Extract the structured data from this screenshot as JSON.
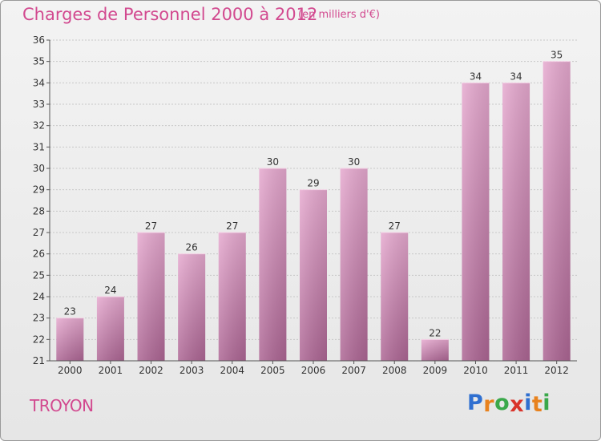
{
  "title": "Charges de Personnel 2000 à 2012",
  "subtitle": "(en milliers d'€)",
  "commune": "TROYON",
  "logo": {
    "text": "Proxiti",
    "letters": [
      {
        "ch": "P",
        "color": "#2f6fd0"
      },
      {
        "ch": "r",
        "color": "#e8821e"
      },
      {
        "ch": "o",
        "color": "#3aa84a"
      },
      {
        "ch": "x",
        "color": "#d9342b"
      },
      {
        "ch": "i",
        "color": "#2f6fd0"
      },
      {
        "ch": "t",
        "color": "#e8821e"
      },
      {
        "ch": "i",
        "color": "#3aa84a"
      }
    ]
  },
  "colors": {
    "bar": "#d98bbd",
    "bar_dark": "#b06a99",
    "title": "#d2498f",
    "axis": "#555555"
  },
  "chart_data": {
    "type": "bar",
    "title": "Charges de Personnel 2000 à 2012",
    "subtitle": "(en milliers d'€)",
    "categories": [
      "2000",
      "2001",
      "2002",
      "2003",
      "2004",
      "2005",
      "2006",
      "2007",
      "2008",
      "2009",
      "2010",
      "2011",
      "2012"
    ],
    "values": [
      23,
      24,
      27,
      26,
      27,
      30,
      29,
      30,
      27,
      22,
      34,
      34,
      35
    ],
    "ylim": [
      21,
      36
    ],
    "yticks": [
      21,
      22,
      23,
      24,
      25,
      26,
      27,
      28,
      29,
      30,
      31,
      32,
      33,
      34,
      35,
      36
    ],
    "grid": true
  }
}
